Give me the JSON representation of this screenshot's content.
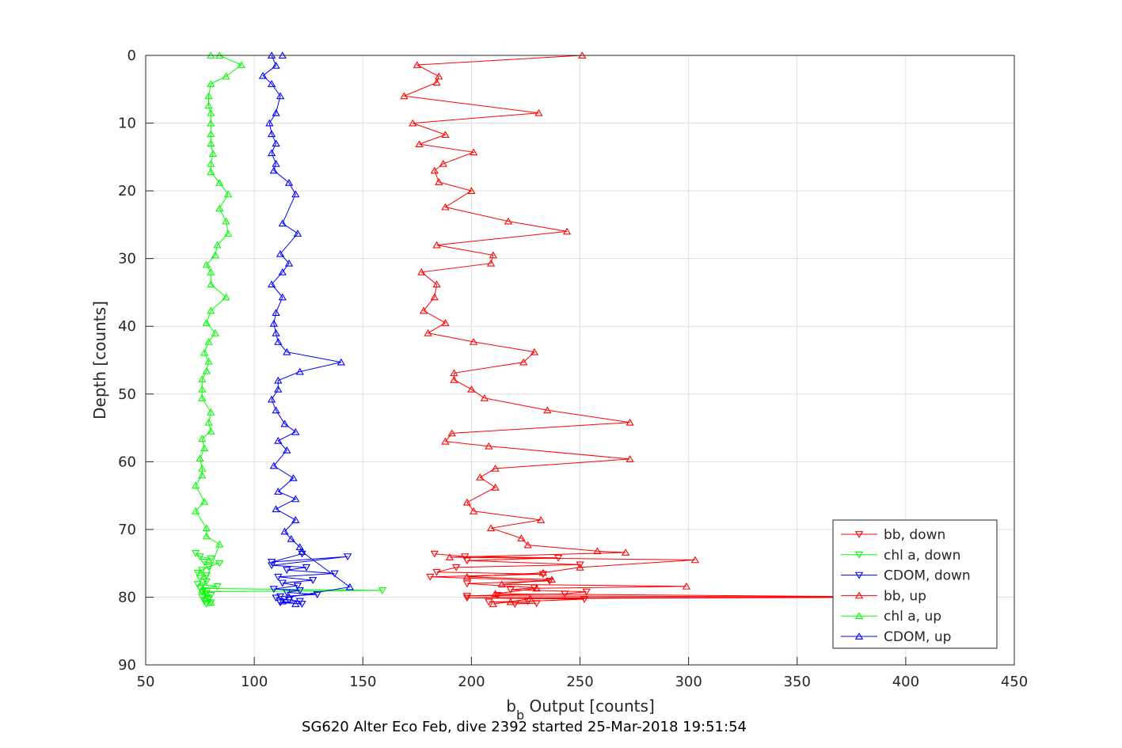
{
  "chart_data": {
    "type": "line",
    "title": "SG620 Alter Eco Feb, dive 2392 started 25-Mar-2018 19:51:54",
    "xlabel_main": "b",
    "xlabel_sub": "b",
    "xlabel_rest": " Output [counts]",
    "ylabel": "Depth [counts]",
    "xlim": [
      50,
      450
    ],
    "ylim": [
      0,
      90
    ],
    "y_reversed": true,
    "grid": true,
    "xticks": [
      50,
      100,
      150,
      200,
      250,
      300,
      350,
      400,
      450
    ],
    "yticks": [
      0,
      10,
      20,
      30,
      40,
      50,
      60,
      70,
      80,
      90
    ],
    "legend_position": "bottom-right",
    "series": [
      {
        "name": "bb, down",
        "color": "#ff0000",
        "marker": "triangle-down",
        "points": [
          [
            183,
            73.6
          ],
          [
            197,
            74.0
          ],
          [
            240,
            74.2
          ],
          [
            198,
            74.6
          ],
          [
            250,
            75.2
          ],
          [
            193,
            75.6
          ],
          [
            184,
            76.3
          ],
          [
            233,
            76.6
          ],
          [
            181,
            77.0
          ],
          [
            236,
            77.6
          ],
          [
            198,
            78.0
          ],
          [
            229,
            78.6
          ],
          [
            218,
            78.9
          ],
          [
            253,
            79.2
          ],
          [
            243,
            79.5
          ],
          [
            212,
            79.7
          ],
          [
            198,
            79.8
          ],
          [
            410,
            80.0
          ],
          [
            198,
            80.1
          ],
          [
            252,
            80.3
          ],
          [
            226,
            80.6
          ],
          [
            208,
            80.7
          ],
          [
            230,
            80.9
          ],
          [
            220,
            81.0
          ]
        ]
      },
      {
        "name": "chl a, down",
        "color": "#00ff00",
        "marker": "triangle-down",
        "points": [
          [
            73,
            73.5
          ],
          [
            75,
            74.0
          ],
          [
            80,
            74.3
          ],
          [
            77,
            74.8
          ],
          [
            84,
            75.0
          ],
          [
            79,
            75.5
          ],
          [
            76,
            76.0
          ],
          [
            74,
            76.4
          ],
          [
            78,
            76.8
          ],
          [
            75,
            77.2
          ],
          [
            78,
            77.7
          ],
          [
            74,
            78.1
          ],
          [
            83,
            78.4
          ],
          [
            75,
            78.7
          ],
          [
            159,
            79.0
          ],
          [
            76,
            79.2
          ],
          [
            78,
            79.4
          ],
          [
            80,
            79.7
          ],
          [
            76,
            80.0
          ],
          [
            79,
            80.3
          ],
          [
            77,
            80.6
          ],
          [
            80,
            80.8
          ],
          [
            78,
            81.0
          ]
        ]
      },
      {
        "name": "CDOM, down",
        "color": "#0000ff",
        "marker": "triangle-down",
        "points": [
          [
            122,
            73.6
          ],
          [
            108,
            74.8
          ],
          [
            143,
            74.0
          ],
          [
            108,
            75.3
          ],
          [
            124,
            75.6
          ],
          [
            115,
            76.0
          ],
          [
            137,
            76.5
          ],
          [
            111,
            77.0
          ],
          [
            127,
            77.5
          ],
          [
            113,
            77.9
          ],
          [
            120,
            78.3
          ],
          [
            109,
            78.8
          ],
          [
            121,
            79.0
          ],
          [
            115,
            79.3
          ],
          [
            129,
            79.6
          ],
          [
            112,
            79.9
          ],
          [
            110,
            80.1
          ],
          [
            116,
            80.4
          ],
          [
            121,
            80.6
          ],
          [
            112,
            80.8
          ],
          [
            122,
            81.0
          ]
        ]
      },
      {
        "name": "bb, up",
        "color": "#ff0000",
        "marker": "triangle-up",
        "points": [
          [
            210,
            81.0
          ],
          [
            218,
            80.7
          ],
          [
            227,
            80.2
          ],
          [
            410,
            80.0
          ],
          [
            211,
            79.5
          ],
          [
            230,
            78.7
          ],
          [
            299,
            78.4
          ],
          [
            214,
            78.1
          ],
          [
            237,
            77.4
          ],
          [
            198,
            77.0
          ],
          [
            233,
            76.4
          ],
          [
            250,
            75.6
          ],
          [
            303,
            74.5
          ],
          [
            190,
            74.1
          ],
          [
            271,
            73.4
          ],
          [
            258,
            73.2
          ],
          [
            226,
            72.3
          ],
          [
            223,
            71.3
          ],
          [
            209,
            69.8
          ],
          [
            232,
            68.6
          ],
          [
            201,
            67.3
          ],
          [
            198,
            66.0
          ],
          [
            211,
            63.8
          ],
          [
            204,
            62.3
          ],
          [
            211,
            61.0
          ],
          [
            273,
            59.6
          ],
          [
            208,
            57.7
          ],
          [
            188,
            57.0
          ],
          [
            191,
            55.8
          ],
          [
            273,
            54.2
          ],
          [
            235,
            52.4
          ],
          [
            206,
            50.6
          ],
          [
            200,
            49.3
          ],
          [
            192,
            47.9
          ],
          [
            192,
            46.9
          ],
          [
            224,
            45.3
          ],
          [
            229,
            43.8
          ],
          [
            201,
            42.3
          ],
          [
            180,
            41.0
          ],
          [
            188,
            39.5
          ],
          [
            178,
            37.7
          ],
          [
            183,
            35.7
          ],
          [
            184,
            33.8
          ],
          [
            177,
            32.0
          ],
          [
            209,
            30.7
          ],
          [
            210,
            29.5
          ],
          [
            184,
            28.0
          ],
          [
            244,
            26.0
          ],
          [
            217,
            24.5
          ],
          [
            188,
            22.4
          ],
          [
            200,
            20.0
          ],
          [
            185,
            18.7
          ],
          [
            183,
            17.0
          ],
          [
            187,
            16.0
          ],
          [
            201,
            14.3
          ],
          [
            176,
            13.1
          ],
          [
            188,
            11.7
          ],
          [
            173,
            10.0
          ],
          [
            231,
            8.5
          ],
          [
            169,
            6.0
          ],
          [
            184,
            4.0
          ],
          [
            185,
            3.1
          ],
          [
            175,
            1.4
          ],
          [
            251,
            0.0
          ]
        ]
      },
      {
        "name": "chl a, up",
        "color": "#00ff00",
        "marker": "triangle-up",
        "points": [
          [
            80,
            80.8
          ],
          [
            78,
            80.1
          ],
          [
            76,
            79.0
          ],
          [
            84,
            72.2
          ],
          [
            78,
            71.0
          ],
          [
            78,
            69.8
          ],
          [
            73,
            67.3
          ],
          [
            77,
            65.9
          ],
          [
            73,
            63.5
          ],
          [
            76,
            62.0
          ],
          [
            76,
            61.0
          ],
          [
            75,
            59.5
          ],
          [
            77,
            58.0
          ],
          [
            76,
            56.6
          ],
          [
            80,
            55.5
          ],
          [
            79,
            54.2
          ],
          [
            80,
            52.7
          ],
          [
            76,
            50.6
          ],
          [
            76,
            49.3
          ],
          [
            76,
            47.8
          ],
          [
            78,
            46.6
          ],
          [
            79,
            45.2
          ],
          [
            77,
            43.9
          ],
          [
            79,
            42.3
          ],
          [
            82,
            41.0
          ],
          [
            78,
            39.5
          ],
          [
            80,
            37.7
          ],
          [
            87,
            35.7
          ],
          [
            80,
            33.8
          ],
          [
            80,
            32.0
          ],
          [
            78,
            30.9
          ],
          [
            82,
            29.5
          ],
          [
            83,
            28.0
          ],
          [
            88,
            26.3
          ],
          [
            87,
            24.5
          ],
          [
            84,
            22.6
          ],
          [
            88,
            20.5
          ],
          [
            84,
            18.8
          ],
          [
            80,
            17.2
          ],
          [
            80,
            16.0
          ],
          [
            81,
            14.5
          ],
          [
            80,
            13.0
          ],
          [
            80,
            11.6
          ],
          [
            80,
            10.0
          ],
          [
            80,
            8.5
          ],
          [
            79,
            7.4
          ],
          [
            79,
            6.0
          ],
          [
            80,
            4.2
          ],
          [
            87,
            3.1
          ],
          [
            94,
            1.4
          ],
          [
            84,
            0.0
          ],
          [
            80,
            0.0
          ]
        ]
      },
      {
        "name": "CDOM, up",
        "color": "#0000ff",
        "marker": "triangle-up",
        "points": [
          [
            119,
            81.0
          ],
          [
            113,
            80.6
          ],
          [
            116,
            80.0
          ],
          [
            144,
            78.5
          ],
          [
            122,
            73.3
          ],
          [
            121,
            72.6
          ],
          [
            117,
            71.4
          ],
          [
            114,
            70.3
          ],
          [
            119,
            68.6
          ],
          [
            110,
            67.0
          ],
          [
            119,
            65.5
          ],
          [
            111,
            64.4
          ],
          [
            118,
            62.4
          ],
          [
            109,
            60.6
          ],
          [
            115,
            58.3
          ],
          [
            111,
            56.9
          ],
          [
            119,
            55.6
          ],
          [
            114,
            54.4
          ],
          [
            110,
            52.4
          ],
          [
            108,
            50.8
          ],
          [
            111,
            49.3
          ],
          [
            111,
            48.0
          ],
          [
            121,
            46.7
          ],
          [
            140,
            45.3
          ],
          [
            115,
            43.8
          ],
          [
            111,
            42.3
          ],
          [
            110,
            41.0
          ],
          [
            109,
            39.6
          ],
          [
            110,
            38.0
          ],
          [
            113,
            35.7
          ],
          [
            108,
            33.8
          ],
          [
            113,
            32.0
          ],
          [
            116,
            30.7
          ],
          [
            112,
            29.3
          ],
          [
            120,
            26.3
          ],
          [
            113,
            24.8
          ],
          [
            119,
            20.5
          ],
          [
            116,
            18.8
          ],
          [
            109,
            17.0
          ],
          [
            110,
            16.0
          ],
          [
            108,
            14.4
          ],
          [
            110,
            13.0
          ],
          [
            108,
            11.6
          ],
          [
            107,
            10.0
          ],
          [
            110,
            8.5
          ],
          [
            112,
            6.0
          ],
          [
            108,
            4.2
          ],
          [
            104,
            3.0
          ],
          [
            110,
            1.5
          ],
          [
            108,
            0.0
          ],
          [
            113,
            0.0
          ]
        ]
      }
    ]
  }
}
